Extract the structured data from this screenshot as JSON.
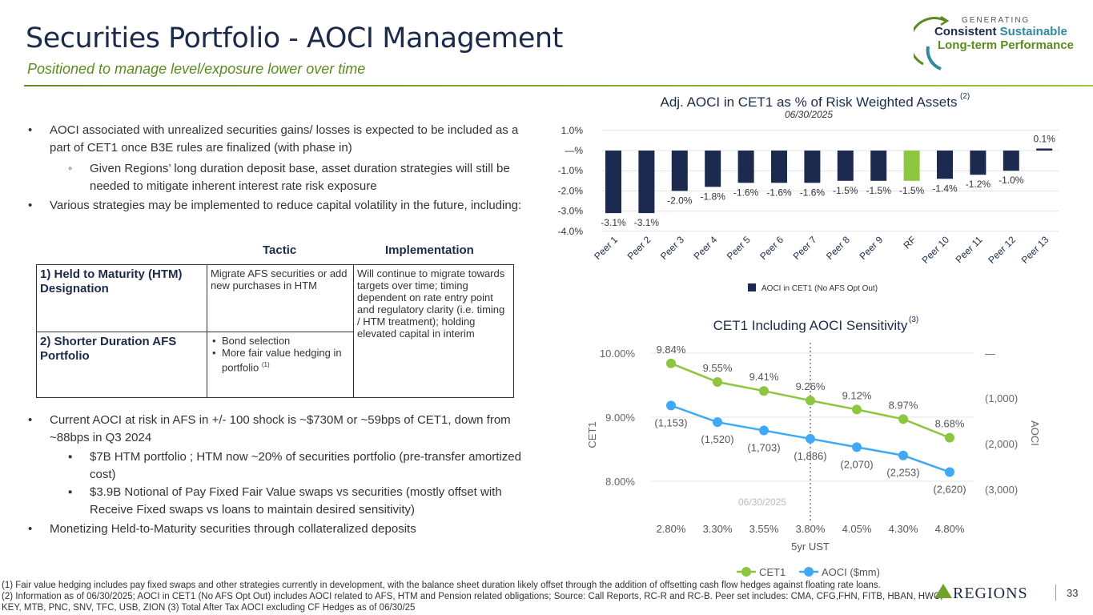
{
  "header": {
    "title": "Securities Portfolio - AOCI Management",
    "subtitle": "Positioned to manage level/exposure lower over time"
  },
  "logo": {
    "generating": "GENERATING",
    "consistent": "Consistent",
    "sustainable": "Sustainable",
    "line2": "Long-term Performance"
  },
  "bullets": {
    "b1": "AOCI associated with unrealized securities gains/ losses is expected to be included as a part of CET1 once B3E rules are finalized (with phase in)",
    "b1a": "Given Regions’ long duration deposit base, asset duration strategies will still be needed to mitigate inherent interest rate risk exposure",
    "b2": "Various strategies may be implemented to reduce capital volatility in the future, including:",
    "b3": "Current AOCI at risk in AFS in +/- 100 shock is ~$730M or ~59bps of CET1, down from ~88bps in Q3 2024",
    "b3a": "$7B HTM portfolio ; HTM now ~20% of securities portfolio (pre-transfer amortized cost)",
    "b3b": "$3.9B Notional of Pay Fixed Fair Value swaps vs securities (mostly offset with Receive Fixed swaps vs loans to maintain desired sensitivity)",
    "b4": "Monetizing Held-to-Maturity securities through collateralized deposits"
  },
  "table": {
    "col_tactic": "Tactic",
    "col_impl": "Implementation",
    "r1_head": "1)  Held to Maturity (HTM) Designation",
    "r1_tactic": "Migrate AFS securities or add new purchases in HTM",
    "r2_head": "2)  Shorter Duration AFS Portfolio",
    "r2_t1": "Bond selection",
    "r2_t2": "More fair value hedging in portfolio",
    "r2_sup": "(1)",
    "impl": "Will continue to migrate towards targets over time; timing dependent on rate entry point and regulatory clarity (i.e. timing / HTM treatment); holding elevated capital in interim"
  },
  "footnotes": {
    "f1": "(1) Fair value hedging includes pay fixed swaps and other strategies currently in development, with the balance sheet duration likely offset through the addition of offsetting cash flow hedges against floating rate loans.",
    "f2": "(2) Information as of 06/30/2025; AOCI in CET1 (No AFS Opt Out) includes AOCI related to AFS, HTM and Pension related obligations; Source: Call Reports, RC-R and RC-B. Peer set includes: CMA, CFG,FHN, FITB, HBAN, HWC, KEY, MTB, PNC, SNV, TFC, USB, ZION (3) Total After Tax  AOCI excluding CF Hedges as of 06/30/25"
  },
  "brand": "REGIONS",
  "page_number": "33",
  "colors": {
    "navy": "#1b2a4e",
    "green": "#8cc63f",
    "blue": "#3fa9f5",
    "lime": "#8dc63f"
  },
  "chart_data": [
    {
      "type": "bar",
      "title": "Adj. AOCI in CET1 as % of Risk Weighted Assets",
      "title_sup": "(2)",
      "subtitle": "06/30/2025",
      "categories": [
        "Peer 1",
        "Peer 2",
        "Peer 3",
        "Peer 4",
        "Peer 5",
        "Peer 6",
        "Peer 7",
        "Peer 8",
        "Peer 9",
        "RF",
        "Peer 10",
        "Peer 11",
        "Peer 12",
        "Peer 13"
      ],
      "values": [
        -3.1,
        -3.1,
        -2.0,
        -1.8,
        -1.6,
        -1.6,
        -1.6,
        -1.5,
        -1.5,
        -1.5,
        -1.4,
        -1.2,
        -1.0,
        0.1
      ],
      "labels": [
        "-3.1%",
        "-3.1%",
        "-2.0%",
        "-1.8%",
        "-1.6%",
        "-1.6%",
        "-1.6%",
        "-1.5%",
        "-1.5%",
        "-1.5%",
        "-1.4%",
        "-1.2%",
        "-1.0%",
        "0.1%"
      ],
      "highlight": "RF",
      "ylim": [
        -4,
        1
      ],
      "yticks": [
        1,
        0,
        -1,
        -2,
        -3,
        -4
      ],
      "ytick_labels": [
        "1.0%",
        "—%",
        "-1.0%",
        "-2.0%",
        "-3.0%",
        "-4.0%"
      ],
      "legend": "AOCI in CET1 (No AFS Opt Out)",
      "legend_position": "bottom",
      "grid": true
    },
    {
      "type": "line",
      "title": "CET1 Including AOCI Sensitivity",
      "title_sup": "(3)",
      "xlabel": "5yr UST",
      "ylabel": "CET1",
      "y2label": "AOCI",
      "categories": [
        "2.80%",
        "3.30%",
        "3.55%",
        "3.80%",
        "4.05%",
        "4.30%",
        "4.80%"
      ],
      "series": [
        {
          "name": "CET1",
          "axis": "left",
          "values": [
            9.84,
            9.55,
            9.41,
            9.26,
            9.12,
            8.97,
            8.68
          ],
          "labels": [
            "9.84%",
            "9.55%",
            "9.41%",
            "9.26%",
            "9.12%",
            "8.97%",
            "8.68%"
          ]
        },
        {
          "name": "AOCI ($mm)",
          "axis": "right",
          "values": [
            -1153,
            -1520,
            -1703,
            -1886,
            -2070,
            -2253,
            -2620
          ],
          "labels": [
            "(1,153)",
            "(1,520)",
            "(1,703)",
            "(1,886)",
            "(2,070)",
            "(2,253)",
            "(2,620)"
          ]
        }
      ],
      "ylim": [
        7.5,
        10
      ],
      "yticks": [
        10,
        9,
        8
      ],
      "ytick_labels": [
        "10.00%",
        "9.00%",
        "8.00%"
      ],
      "y2ticks": [
        0,
        -1000,
        -2000,
        -3000
      ],
      "y2tick_labels": [
        "—",
        "(1,000)",
        "(2,000)",
        "(3,000)"
      ],
      "marker": {
        "category": "3.80%",
        "label": "06/30/2025"
      },
      "legend_position": "bottom",
      "grid": true
    }
  ]
}
